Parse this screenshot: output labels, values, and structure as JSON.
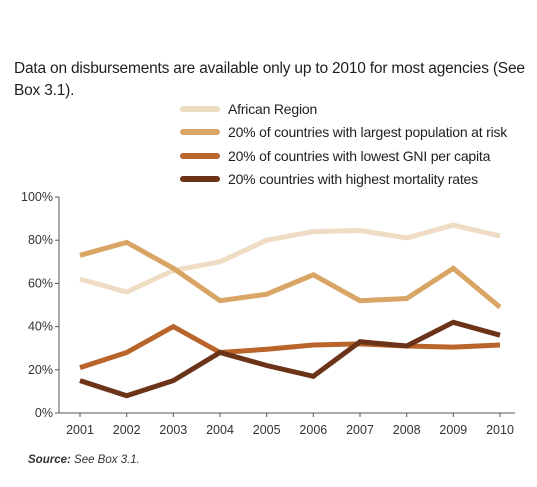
{
  "note": {
    "text": "Data on disbursements are available only up to 2010 for most agencies (See",
    "ref": "Box 3.1",
    "tail": ")."
  },
  "source": {
    "label": "Source:",
    "text": " See Box 3.1."
  },
  "colors": {
    "african_region": "#efdcc4",
    "largest_pop": "#d9a565",
    "lowest_gni": "#b8642b",
    "highest_mortality": "#6b3419"
  },
  "chart_data": {
    "type": "line",
    "x": [
      "2001",
      "2002",
      "2003",
      "2004",
      "2005",
      "2006",
      "2007",
      "2008",
      "2009",
      "2010"
    ],
    "ylim": [
      0,
      100
    ],
    "yticks": [
      "0%",
      "20%",
      "40%",
      "60%",
      "80%",
      "100%"
    ],
    "grid": false,
    "legend": "top",
    "series": [
      {
        "name": "African Region",
        "color": "#efdcc4",
        "values": [
          62,
          56,
          66,
          70,
          80,
          84,
          84.5,
          81,
          87,
          82
        ]
      },
      {
        "name": "20% of countries with largest population at risk",
        "color": "#d9a565",
        "values": [
          73,
          79,
          67,
          52,
          55,
          64,
          52,
          53,
          67,
          49
        ]
      },
      {
        "name": "20% of countries with lowest GNI per capita",
        "color": "#b8642b",
        "values": [
          21,
          28,
          40,
          28,
          29.5,
          31.5,
          32,
          31,
          30.5,
          31.5
        ]
      },
      {
        "name": "20% countries with highest mortality rates",
        "color": "#6b3419",
        "values": [
          15,
          8,
          15,
          28,
          22,
          17,
          33,
          31,
          42,
          36
        ]
      }
    ]
  }
}
